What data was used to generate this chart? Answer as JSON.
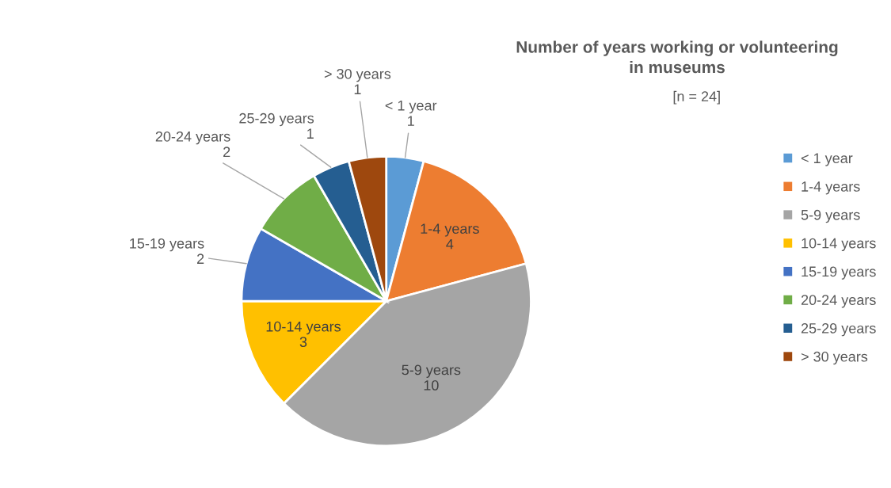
{
  "chart_data": {
    "type": "pie",
    "title": "Number of years working or volunteering\nin museums",
    "subtitle": "[n = 24]",
    "categories": [
      "< 1 year",
      "1-4 years",
      "5-9 years",
      "10-14 years",
      "15-19 years",
      "20-24 years",
      "25-29 years",
      "> 30 years"
    ],
    "values": [
      1,
      4,
      10,
      3,
      2,
      2,
      1,
      1
    ],
    "colors": [
      "#5b9bd5",
      "#ed7d31",
      "#a5a5a5",
      "#ffc000",
      "#4472c4",
      "#70ad47",
      "#255e91",
      "#9e480e"
    ],
    "data_labels": true,
    "legend": "right"
  }
}
